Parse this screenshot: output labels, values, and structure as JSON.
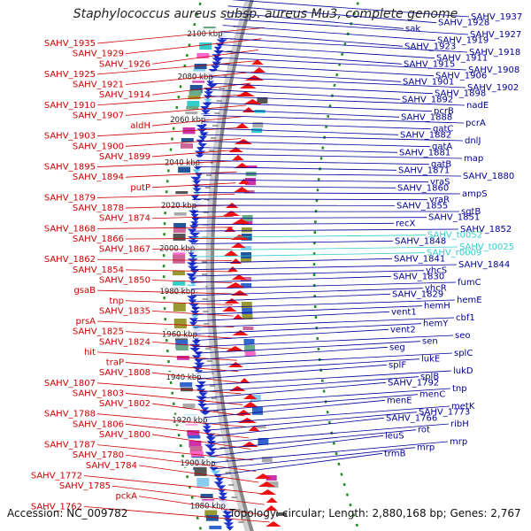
{
  "header": {
    "title": "Staphylococcus aureus subsp. aureus Mu3, complete genome"
  },
  "footer": {
    "accession": "Accession: NC_009782",
    "summary": "Topology: circular; Length: 2,880,168 bp; Genes: 2,767"
  },
  "colors": {
    "forward_label": "#cc0000",
    "reverse_label": "#000099",
    "rna_label": "#33cccc",
    "backbone": "#888888",
    "gc_skew": "#228b22"
  },
  "scale_labels": [
    "2100 kbp",
    "2080 kbp",
    "2060 kbp",
    "2040 kbp",
    "2020 kbp",
    "2000 kbp",
    "1980 kbp",
    "1960 kbp",
    "1940 kbp",
    "1920 kbp",
    "1900 kbp",
    "1880 kbp"
  ],
  "left_labels": [
    "SAHV_1935",
    "SAHV_1929",
    "SAHV_1926",
    "SAHV_1925",
    "SAHV_1921",
    "SAHV_1914",
    "SAHV_1910",
    "SAHV_1907",
    "aldH",
    "SAHV_1903",
    "SAHV_1900",
    "SAHV_1899",
    "SAHV_1895",
    "SAHV_1894",
    "putP",
    "SAHV_1879",
    "SAHV_1878",
    "SAHV_1874",
    "SAHV_1868",
    "SAHV_1866",
    "SAHV_1867",
    "SAHV_1862",
    "SAHV_1854",
    "SAHV_1850",
    "gsaB",
    "tnp",
    "SAHV_1835",
    "prsA",
    "SAHV_1825",
    "SAHV_1824",
    "hit",
    "traP",
    "SAHV_1808",
    "SAHV_1807",
    "SAHV_1803",
    "SAHV_1802",
    "SAHV_1788",
    "SAHV_1806",
    "SAHV_1800",
    "SAHV_1787",
    "SAHV_1780",
    "SAHV_1784",
    "SAHV_1772",
    "SAHV_1785",
    "pckA",
    "SAHV_1762"
  ],
  "right_labels": [
    "SAHV_1937",
    "SAHV_1928",
    "sak",
    "SAHV_1927",
    "SAHV_1919",
    "SAHV_1923",
    "SAHV_1918",
    "SAHV_1911",
    "SAHV_1915",
    "SAHV_1908",
    "SAHV_1906",
    "SAHV_1901",
    "SAHV_1902",
    "SAHV_1898",
    "SAHV_1892",
    "nadE",
    "pcrB",
    "SAHV_1888",
    "pcrA",
    "gatC",
    "SAHV_1882",
    "dnlJ",
    "gatA",
    "SAHV_1881",
    "map",
    "gatB",
    "SAHV_1871",
    "SAHV_1880",
    "vraS",
    "SAHV_1860",
    "ampS",
    "vraR",
    "SAHV_1855",
    "sgtB",
    "SAHV_1851",
    "recX",
    "SAHV_1852",
    "SAHV_t0052",
    "SAHV_1848",
    "SAHV_t0025",
    "SAHV_r0009",
    "SAHV_1841",
    "SAHV_1844",
    "yhcS",
    "SAHV_1830",
    "fumC",
    "yhcR",
    "SAHV_1829",
    "hemE",
    "hemH",
    "vent1",
    "cbf1",
    "hemY",
    "vent2",
    "seo",
    "sen",
    "seg",
    "splC",
    "lukE",
    "splF",
    "lukD",
    "splB",
    "SAHV_1792",
    "tnp",
    "menC",
    "menE",
    "metK",
    "SAHV_1773",
    "SAHV_1766",
    "ribH",
    "rot",
    "leuS",
    "mrp",
    "mrp",
    "trmB"
  ]
}
